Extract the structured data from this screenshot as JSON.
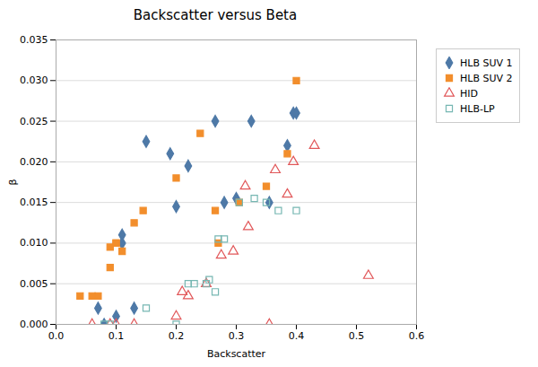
{
  "chart_data": {
    "type": "scatter",
    "title": "Backscatter versus Beta",
    "xlabel": "Backscatter",
    "ylabel": "β",
    "xlim": [
      0,
      0.6
    ],
    "ylim": [
      0,
      0.035
    ],
    "xticks": [
      {
        "value": 0,
        "label": "0.0"
      },
      0.1,
      0.2,
      0.3,
      0.4,
      0.5,
      0.6
    ],
    "yticks": [
      {
        "value": 0,
        "label": "0.000"
      },
      0.005,
      {
        "value": 0.01,
        "label": "0.010"
      },
      0.015,
      {
        "value": 0.02,
        "label": "0.020"
      },
      0.025,
      {
        "value": 0.03,
        "label": "0.030"
      },
      0.035
    ],
    "grid": "y",
    "legend": "right",
    "series": [
      {
        "name": "HLB SUV 1",
        "marker": "diamond",
        "x": [
          0.07,
          0.08,
          0.1,
          0.11,
          0.11,
          0.13,
          0.15,
          0.19,
          0.2,
          0.22,
          0.265,
          0.28,
          0.3,
          0.325,
          0.355,
          0.385,
          0.395,
          0.4
        ],
        "values": [
          0.002,
          0.0,
          0.001,
          0.011,
          0.01,
          0.002,
          0.0225,
          0.021,
          0.0145,
          0.0195,
          0.025,
          0.015,
          0.0155,
          0.025,
          0.015,
          0.022,
          0.026,
          0.026
        ]
      },
      {
        "name": "HLB SUV 2",
        "marker": "square",
        "x": [
          0.04,
          0.06,
          0.07,
          0.09,
          0.09,
          0.1,
          0.1,
          0.11,
          0.13,
          0.145,
          0.2,
          0.24,
          0.265,
          0.27,
          0.305,
          0.35,
          0.385,
          0.4
        ],
        "values": [
          0.0035,
          0.0035,
          0.0035,
          0.0095,
          0.007,
          0.01,
          0.01,
          0.009,
          0.0125,
          0.014,
          0.018,
          0.0235,
          0.014,
          0.01,
          0.015,
          0.017,
          0.021,
          0.03
        ]
      },
      {
        "name": "HID",
        "marker": "triangle-open",
        "x": [
          0.06,
          0.09,
          0.1,
          0.13,
          0.2,
          0.21,
          0.22,
          0.25,
          0.275,
          0.295,
          0.315,
          0.32,
          0.355,
          0.365,
          0.385,
          0.395,
          0.43,
          0.52
        ],
        "values": [
          0.0,
          0.0,
          0.0,
          0.0,
          0.001,
          0.004,
          0.0035,
          0.005,
          0.0085,
          0.009,
          0.017,
          0.012,
          0.0,
          0.019,
          0.016,
          0.02,
          0.022,
          0.006
        ]
      },
      {
        "name": "HLB-LP",
        "marker": "square-open",
        "x": [
          0.08,
          0.09,
          0.15,
          0.2,
          0.22,
          0.23,
          0.25,
          0.255,
          0.265,
          0.27,
          0.28,
          0.305,
          0.33,
          0.35,
          0.37,
          0.4
        ],
        "values": [
          0.0,
          0.0,
          0.002,
          0.0,
          0.005,
          0.005,
          0.005,
          0.0055,
          0.004,
          0.0105,
          0.0105,
          0.015,
          0.0155,
          0.015,
          0.014,
          0.014
        ]
      }
    ]
  }
}
